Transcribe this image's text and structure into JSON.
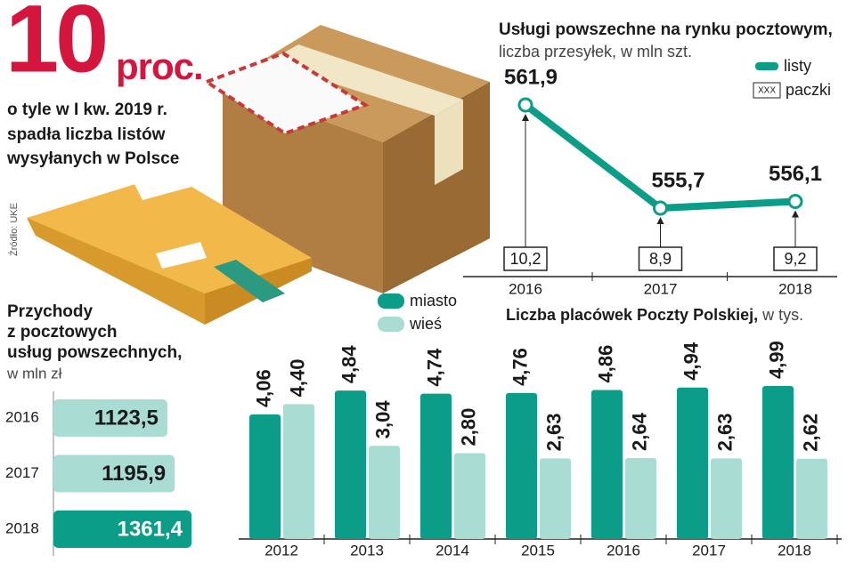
{
  "headline": {
    "number": "10",
    "unit": "proc.",
    "text": [
      "o tyle w I kw. 2019 r.",
      "spadła liczba listów",
      "wysyłanych w Polsce"
    ],
    "source": "Źródło: UKE"
  },
  "chart_data": [
    {
      "type": "line",
      "title": "Usługi powszechne na rynku pocztowym,",
      "subtitle": "liczba przesyłek, w mln szt.",
      "categories": [
        "2016",
        "2017",
        "2018"
      ],
      "series": [
        {
          "name": "listy",
          "color": "#0b9d87",
          "values": [
            561.9,
            555.7,
            556.1
          ],
          "value_labels": [
            "561,9",
            "555,7",
            "556,1"
          ]
        },
        {
          "name": "paczki",
          "marker_label": "XXX",
          "color": "#222222",
          "values": [
            10.2,
            8.9,
            9.2
          ],
          "value_labels": [
            "10,2",
            "8,9",
            "9,2"
          ]
        }
      ]
    },
    {
      "type": "hbar",
      "title": [
        "Przychody",
        "z pocztowych",
        "usług powszechnych,"
      ],
      "subtitle": "w mln zł",
      "categories": [
        "2016",
        "2017",
        "2018"
      ],
      "values": [
        1123.5,
        1195.9,
        1361.4
      ],
      "value_labels": [
        "1123,5",
        "1195,9",
        "1361,4"
      ],
      "colors": [
        "#a9dcd3",
        "#a9dcd3",
        "#0b9d87"
      ]
    },
    {
      "type": "bar",
      "title": "Liczba placówek Poczty Polskiej,",
      "subtitle": "w tys.",
      "categories": [
        "2012",
        "2013",
        "2014",
        "2015",
        "2016",
        "2017",
        "2018"
      ],
      "series": [
        {
          "name": "miasto",
          "color": "#0b9d87",
          "values": [
            4.06,
            4.84,
            4.74,
            4.76,
            4.86,
            4.94,
            4.99
          ],
          "value_labels": [
            "4,06",
            "4,84",
            "4,74",
            "4,76",
            "4,86",
            "4,94",
            "4,99"
          ]
        },
        {
          "name": "wieś",
          "color": "#a9dcd3",
          "values": [
            4.4,
            3.04,
            2.8,
            2.63,
            2.64,
            2.63,
            2.62
          ],
          "value_labels": [
            "4,40",
            "3,04",
            "2,80",
            "2,63",
            "2,64",
            "2,63",
            "2,62"
          ]
        }
      ]
    }
  ]
}
